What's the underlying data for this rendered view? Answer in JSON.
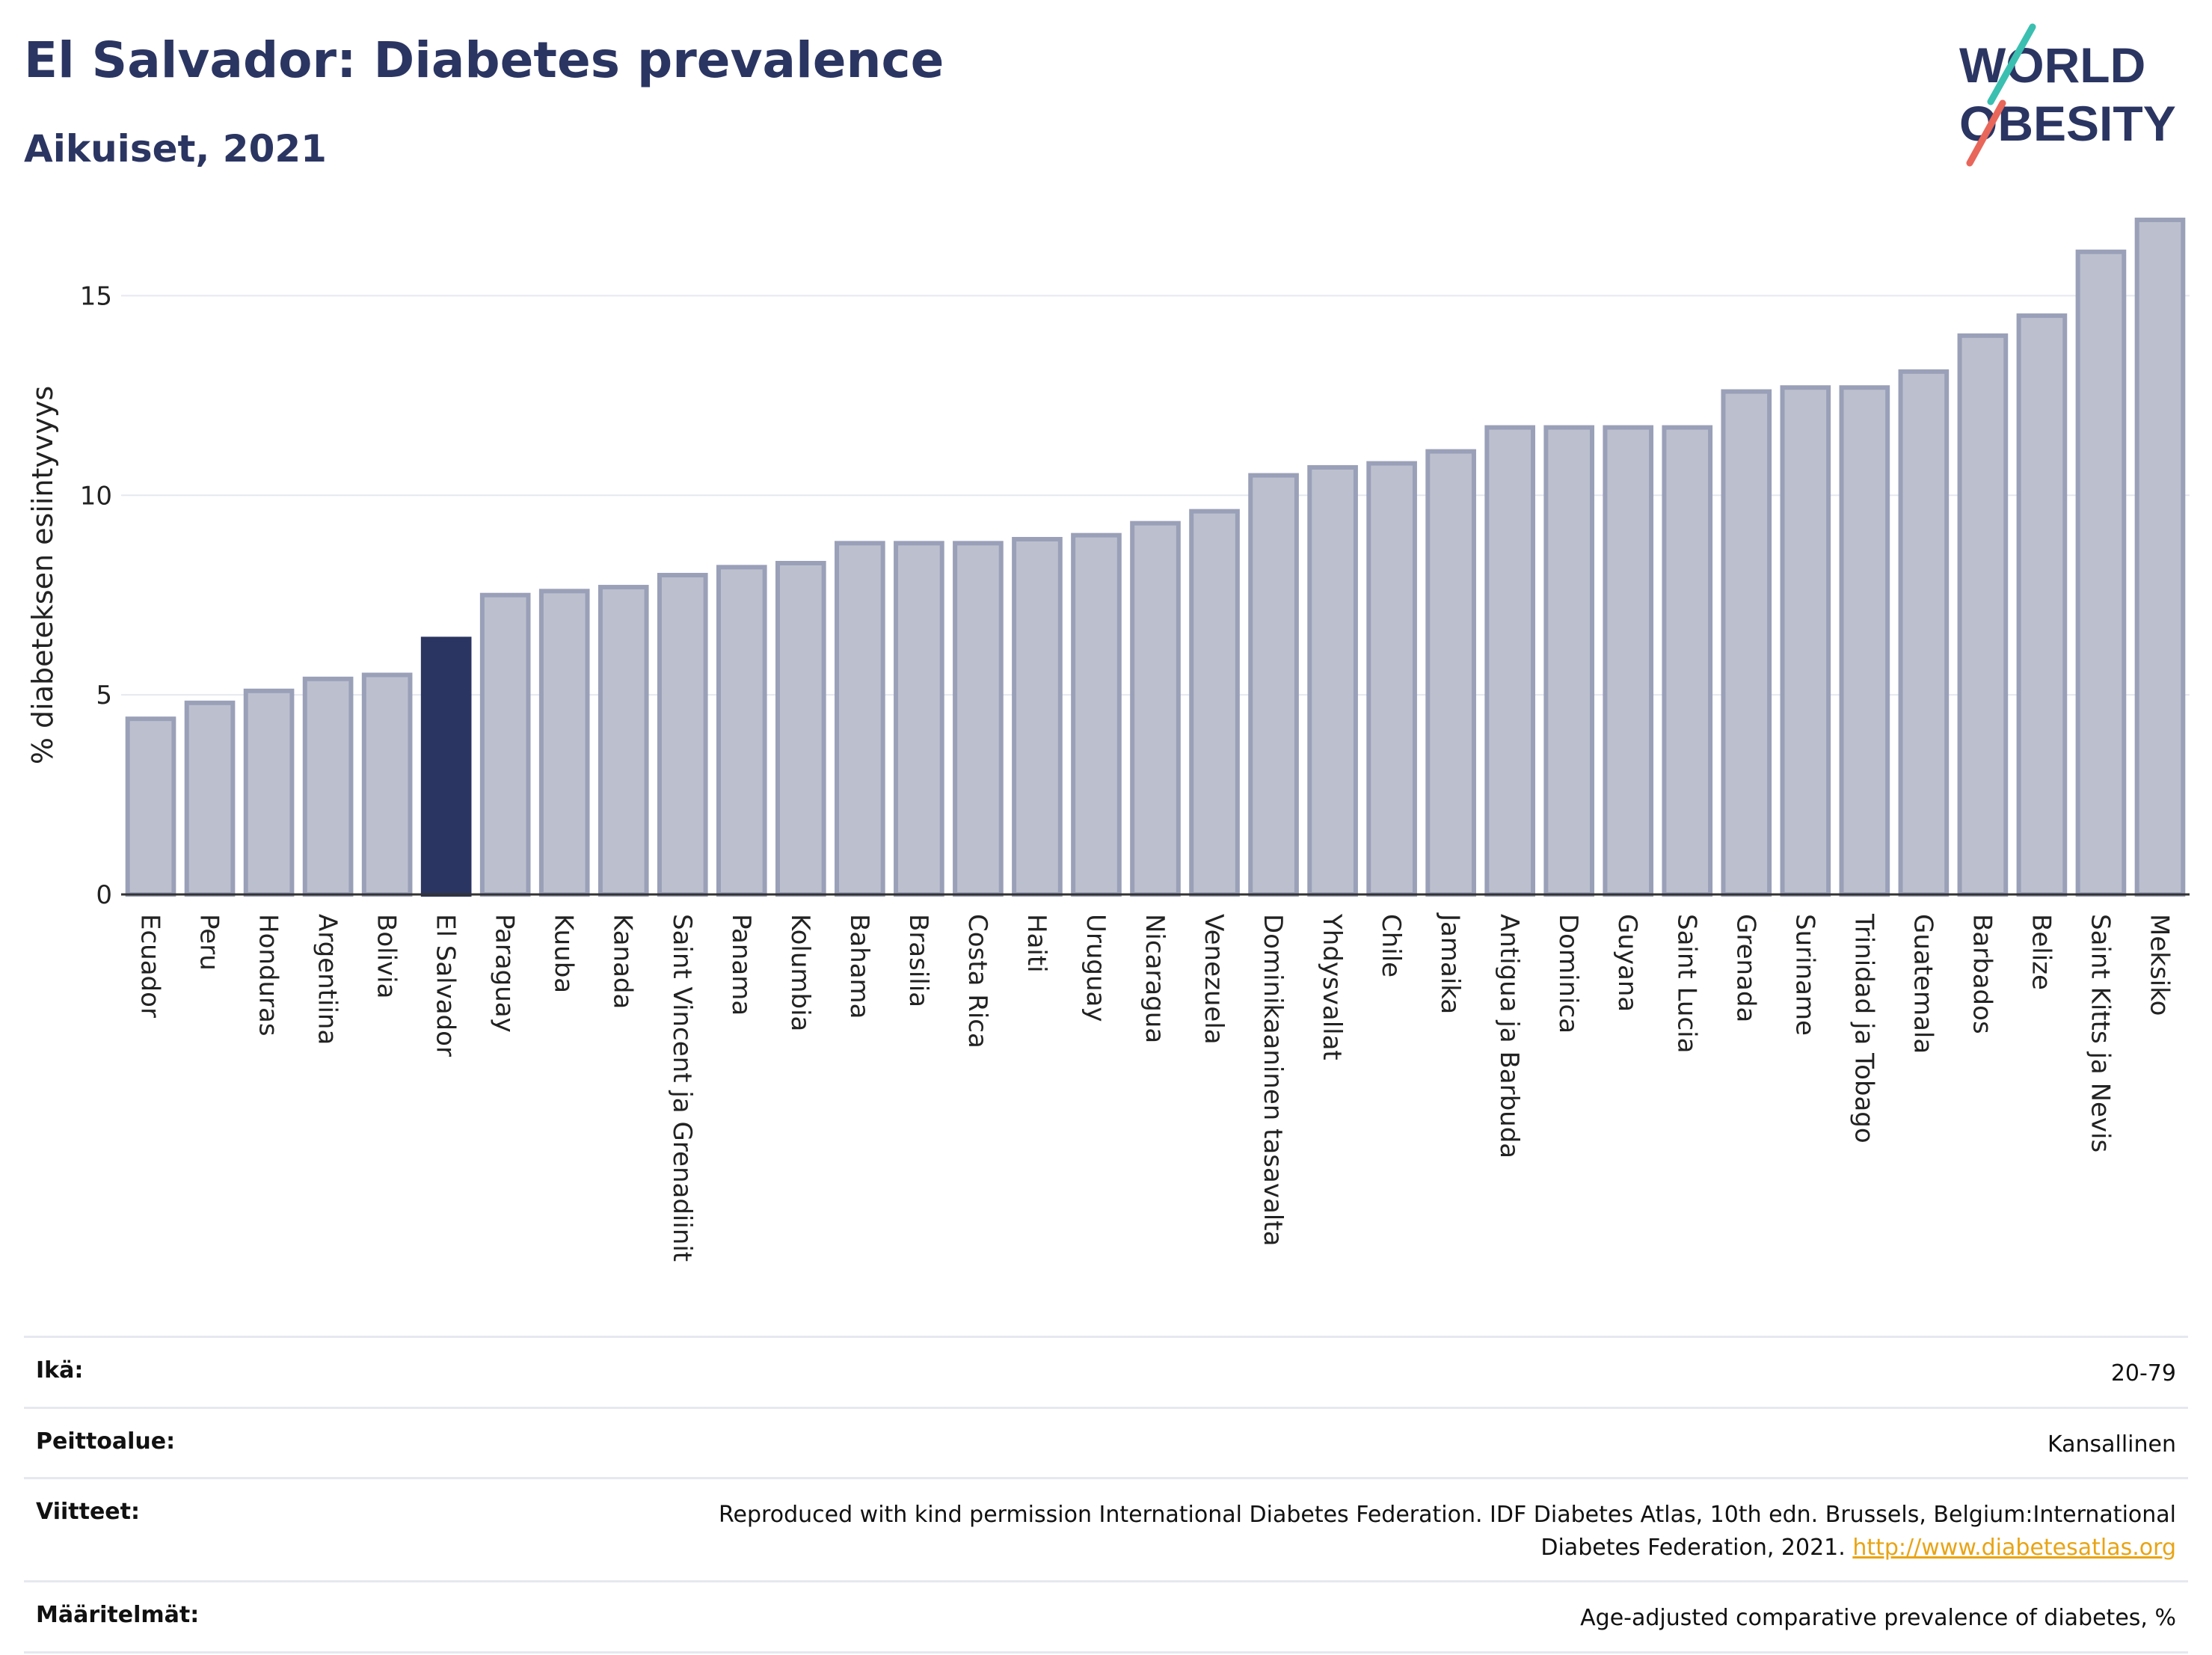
{
  "header": {
    "title": "El Salvador: Diabetes prevalence",
    "subtitle": "Aikuiset, 2021"
  },
  "logo": {
    "line1": "WORLD",
    "line2": "OBESITY"
  },
  "colors": {
    "bar": "#bcc0ce",
    "bar_stroke": "#9aa0b8",
    "highlight": "#2b3562",
    "grid": "#e6e8f0",
    "axis": "#333333",
    "link": "#e8a415"
  },
  "chart_data": {
    "type": "bar",
    "ylabel": "% diabeteksen esiintyvyys",
    "ylim": [
      0,
      17.5
    ],
    "yticks": [
      0,
      5,
      10,
      15
    ],
    "grid": true,
    "highlight": "El Salvador",
    "categories": [
      "Ecuador",
      "Peru",
      "Honduras",
      "Argentiina",
      "Bolivia",
      "El Salvador",
      "Paraguay",
      "Kuuba",
      "Kanada",
      "Saint Vincent ja Grenadiinit",
      "Panama",
      "Kolumbia",
      "Bahama",
      "Brasilia",
      "Costa Rica",
      "Haiti",
      "Uruguay",
      "Nicaragua",
      "Venezuela",
      "Dominikaaninen tasavalta",
      "Yhdysvallat",
      "Chile",
      "Jamaika",
      "Antigua ja Barbuda",
      "Dominica",
      "Guyana",
      "Saint Lucia",
      "Grenada",
      "Suriname",
      "Trinidad ja Tobago",
      "Guatemala",
      "Barbados",
      "Belize",
      "Saint Kitts ja Nevis",
      "Meksiko"
    ],
    "values": [
      4.4,
      4.8,
      5.1,
      5.4,
      5.5,
      6.4,
      7.5,
      7.6,
      7.7,
      8.0,
      8.2,
      8.3,
      8.8,
      8.8,
      8.8,
      8.9,
      9.0,
      9.3,
      9.6,
      10.5,
      10.7,
      10.8,
      11.1,
      11.7,
      11.7,
      11.7,
      11.7,
      12.6,
      12.7,
      12.7,
      13.1,
      14.0,
      14.5,
      16.1,
      16.9
    ]
  },
  "info": [
    {
      "key": "Ikä:",
      "value": "20-79"
    },
    {
      "key": "Peittoalue:",
      "value": "Kansallinen"
    },
    {
      "key": "Viitteet:",
      "value": "Reproduced with kind permission International Diabetes Federation.  IDF Diabetes Atlas, 10th edn. Brussels, Belgium:International Diabetes Federation, 2021.",
      "link": "http://www.diabetesatlas.org"
    },
    {
      "key": "Määritelmät:",
      "value": "Age-adjusted comparative prevalence of diabetes, %"
    }
  ]
}
